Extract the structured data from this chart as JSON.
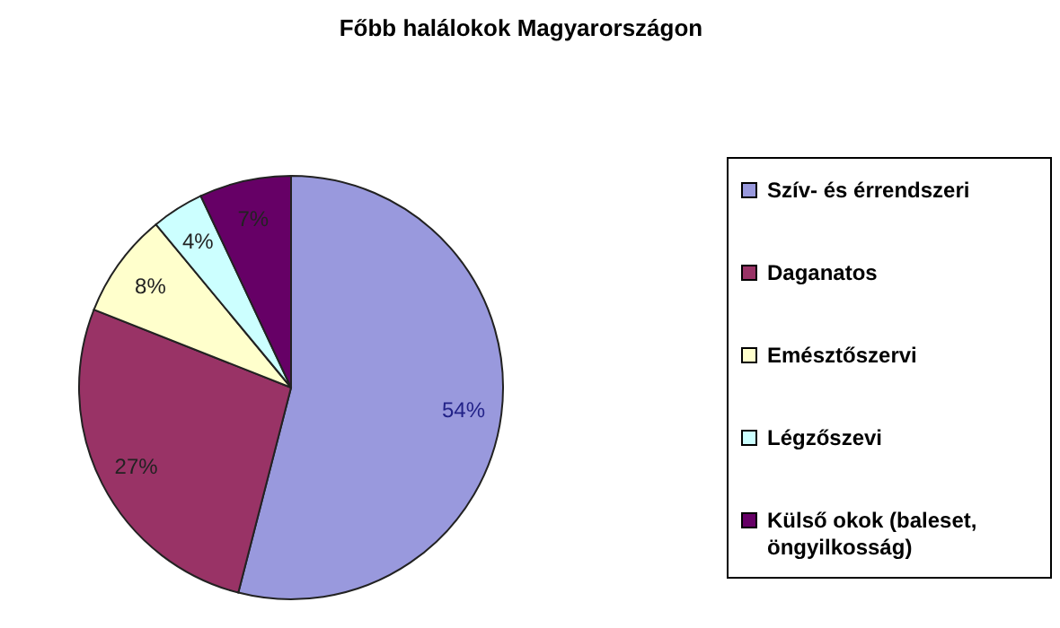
{
  "chart_data": {
    "type": "pie",
    "title": "Főbb halálokok Magyarországon",
    "categories": [
      "Szív- és érrendszeri",
      "Daganatos",
      "Emésztőszervi",
      "Légzőszevi",
      "Külső okok (baleset, öngyilkosság)"
    ],
    "values": [
      54,
      27,
      8,
      4,
      7
    ],
    "colors": [
      "#9999dd",
      "#993366",
      "#ffffcc",
      "#ccffff",
      "#660066"
    ],
    "value_labels": [
      "54%",
      "27%",
      "8%",
      "4%",
      "7%"
    ],
    "legend": "right"
  }
}
